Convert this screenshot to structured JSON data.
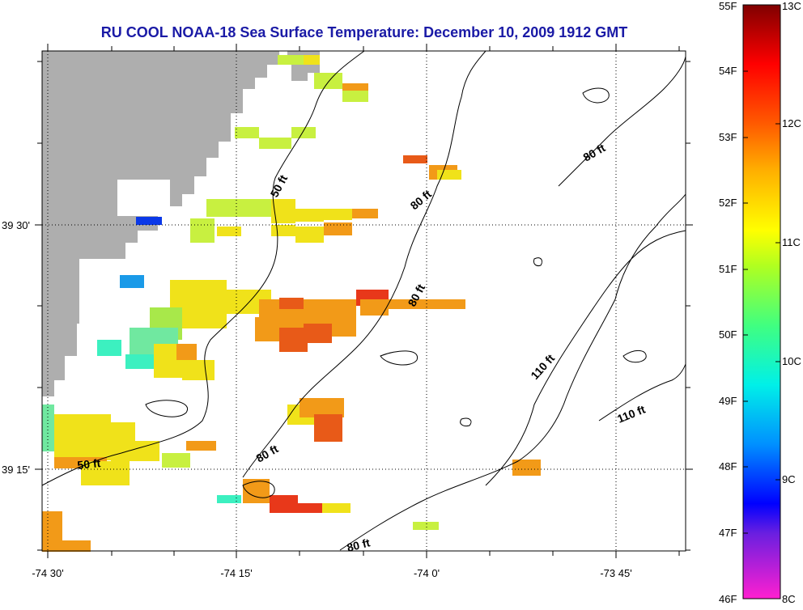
{
  "title": "RU COOL  NOAA-18  Sea Surface Temperature:  December 10, 2009 1912 GMT",
  "axes": {
    "x_ticks": [
      "-74 30'",
      "-74 15'",
      "-74 0'",
      "-73 45'"
    ],
    "y_ticks": [
      "39 30'",
      "39 15'"
    ]
  },
  "contour_labels": [
    "50 ft",
    "80 ft",
    "80 ft",
    "80 ft",
    "80 ft",
    "80 ft",
    "110 ft",
    "110 ft",
    "50 ft"
  ],
  "colorbar": {
    "fahrenheit": [
      "55F",
      "54F",
      "53F",
      "52F",
      "51F",
      "50F",
      "49F",
      "48F",
      "47F",
      "46F"
    ],
    "celsius": [
      "13C",
      "12C",
      "11C",
      "10C",
      "9C",
      "8C"
    ]
  },
  "colors": {
    "land": "#aeaeae",
    "title": "#1a1aa6"
  }
}
